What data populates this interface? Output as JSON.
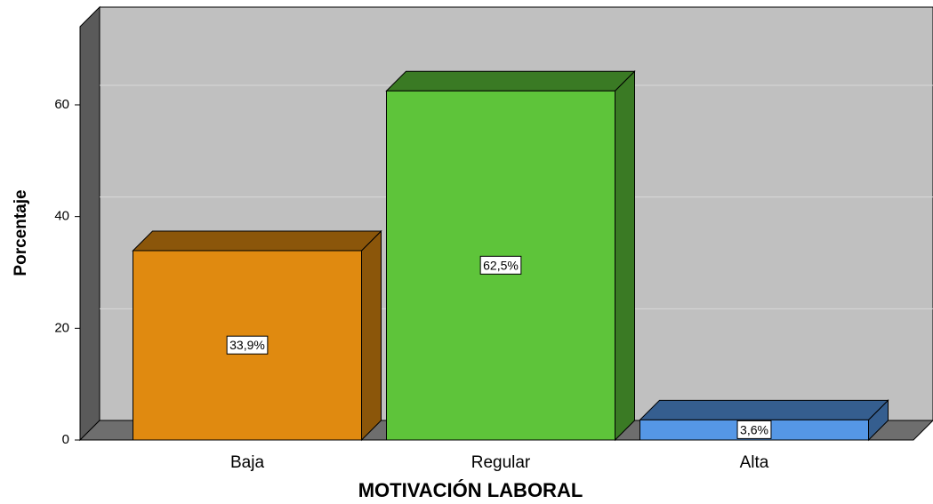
{
  "chart_data": {
    "type": "bar3d",
    "x_label": "MOTIVACIÓN LABORAL",
    "y_label": "Porcentaje",
    "categories": [
      "Baja",
      "Regular",
      "Alta"
    ],
    "values": [
      33.9,
      62.5,
      3.6
    ],
    "value_labels": [
      "33,9%",
      "62,5%",
      "3,6%"
    ],
    "colors": [
      "#e08a10",
      "#5ec43a",
      "#5597e6"
    ],
    "ylim": [
      0,
      74
    ],
    "yticks": [
      0,
      20,
      40,
      60
    ],
    "grid": true
  }
}
